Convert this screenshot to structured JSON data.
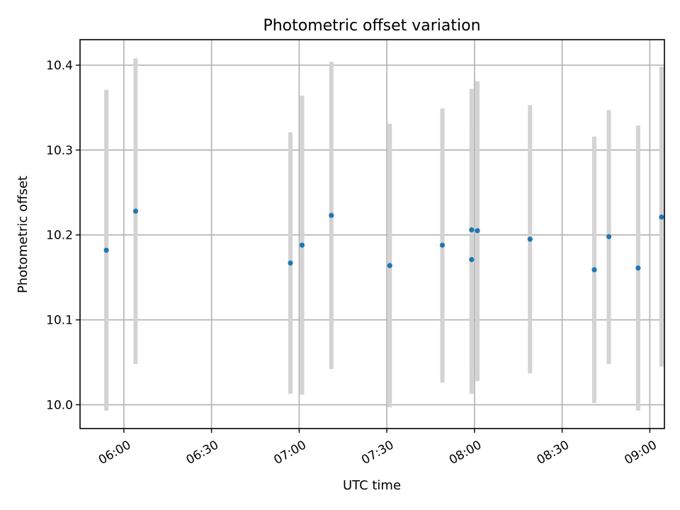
{
  "chart_data": {
    "type": "scatter",
    "title": "Photometric offset variation",
    "xlabel": "UTC time",
    "ylabel": "Photometric offset",
    "x_axis_type": "time",
    "x_range": [
      "05:45",
      "09:05"
    ],
    "ylim": [
      9.972,
      10.43
    ],
    "x_ticks": [
      "06:00",
      "06:30",
      "07:00",
      "07:30",
      "08:00",
      "08:30",
      "09:00"
    ],
    "y_ticks": [
      10.0,
      10.1,
      10.2,
      10.3,
      10.4
    ],
    "y_tick_labels": [
      "10.0",
      "10.1",
      "10.2",
      "10.3",
      "10.4"
    ],
    "x_tick_label_rotation_deg": 30,
    "grid": true,
    "marker_color": "#1f77b4",
    "errorbar_color": "#d3d3d3",
    "points": [
      {
        "time": "05:54",
        "y": 10.182,
        "err_low": 9.993,
        "err_high": 10.371
      },
      {
        "time": "06:04",
        "y": 10.228,
        "err_low": 10.048,
        "err_high": 10.408
      },
      {
        "time": "06:57",
        "y": 10.167,
        "err_low": 10.013,
        "err_high": 10.321
      },
      {
        "time": "07:01",
        "y": 10.188,
        "err_low": 10.012,
        "err_high": 10.364
      },
      {
        "time": "07:11",
        "y": 10.223,
        "err_low": 10.042,
        "err_high": 10.404
      },
      {
        "time": "07:31",
        "y": 10.164,
        "err_low": 9.997,
        "err_high": 10.331
      },
      {
        "time": "07:49",
        "y": 10.188,
        "err_low": 10.026,
        "err_high": 10.349
      },
      {
        "time": "07:59",
        "y": 10.171,
        "err_low": 10.013,
        "err_high": 10.329
      },
      {
        "time": "07:59",
        "y": 10.206,
        "err_low": 10.039,
        "err_high": 10.372
      },
      {
        "time": "08:01",
        "y": 10.205,
        "err_low": 10.028,
        "err_high": 10.381
      },
      {
        "time": "08:19",
        "y": 10.195,
        "err_low": 10.037,
        "err_high": 10.353
      },
      {
        "time": "08:41",
        "y": 10.159,
        "err_low": 10.002,
        "err_high": 10.316
      },
      {
        "time": "08:46",
        "y": 10.198,
        "err_low": 10.048,
        "err_high": 10.347
      },
      {
        "time": "08:56",
        "y": 10.161,
        "err_low": 9.993,
        "err_high": 10.329
      },
      {
        "time": "09:04",
        "y": 10.221,
        "err_low": 10.045,
        "err_high": 10.398
      }
    ]
  }
}
